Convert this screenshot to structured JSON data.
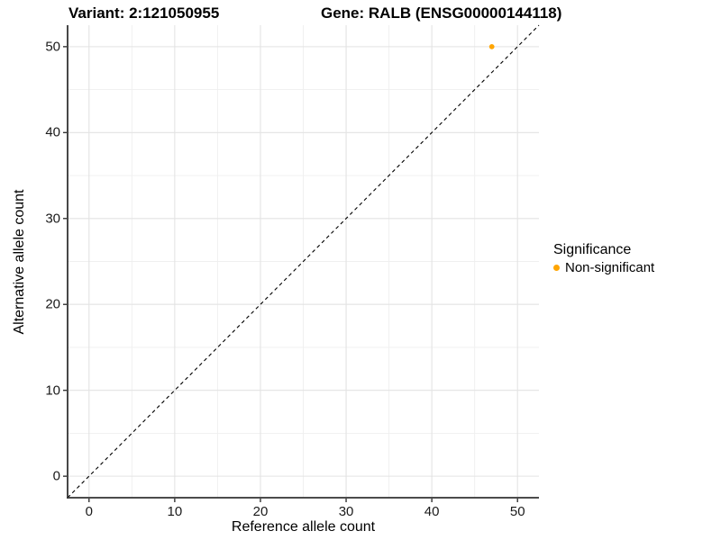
{
  "header": {
    "title_left": "Variant: 2:121050955",
    "title_right": "Gene: RALB (ENSG00000144118)"
  },
  "chart_data": {
    "type": "scatter",
    "title": "Variant: 2:121050955   Gene: RALB (ENSG00000144118)",
    "xlabel": "Reference allele count",
    "ylabel": "Alternative allele count",
    "xlim": [
      -2.5,
      52.5
    ],
    "ylim": [
      -2.5,
      52.5
    ],
    "x_ticks": [
      0,
      10,
      20,
      30,
      40,
      50
    ],
    "y_ticks": [
      0,
      10,
      20,
      30,
      40,
      50
    ],
    "x_minor_ticks": [
      5,
      15,
      25,
      35,
      45
    ],
    "y_minor_ticks": [
      5,
      15,
      25,
      35,
      45
    ],
    "grid": true,
    "legend_position": "right",
    "series": [
      {
        "name": "Non-significant",
        "color": "#FFA500",
        "points": [
          {
            "x": 47,
            "y": 50
          }
        ]
      }
    ],
    "reference_line": {
      "kind": "abline",
      "slope": 1,
      "intercept": 0,
      "style": "dashed",
      "color": "#000000"
    },
    "legend": {
      "title": "Significance",
      "items": [
        {
          "label": "Non-significant",
          "color": "#FFA500"
        }
      ]
    }
  },
  "style_colors": {
    "background": "#FFFFFF",
    "major_grid": "#E3E3E3",
    "minor_grid": "#EFEFEF",
    "axis_line": "#333333",
    "tick_label": "#1A1A1A",
    "point": "#FFA500"
  }
}
